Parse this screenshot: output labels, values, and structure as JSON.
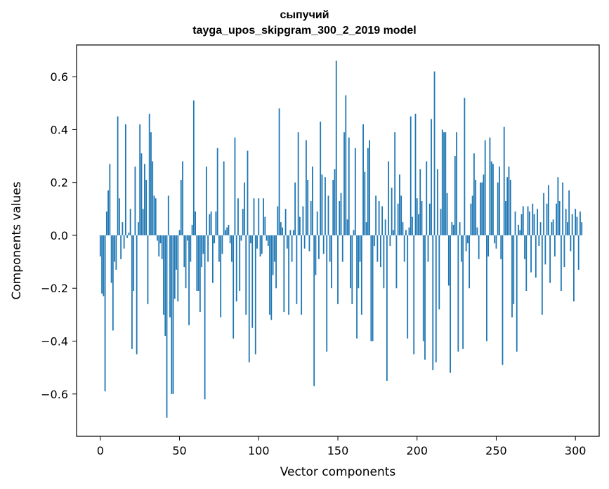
{
  "chart_data": {
    "type": "bar",
    "title_line1": "сыпучий",
    "title_line2": "tayga_upos_skipgram_300_2_2019 model",
    "xlabel": "Vector components",
    "ylabel": "Components values",
    "xlim": [
      -15,
      315
    ],
    "ylim": [
      -0.76,
      0.72
    ],
    "xticks": [
      0,
      50,
      100,
      150,
      200,
      250,
      300
    ],
    "xtick_labels": [
      "0",
      "50",
      "100",
      "150",
      "200",
      "250",
      "300"
    ],
    "yticks": [
      -0.6,
      -0.4,
      -0.2,
      0.0,
      0.2,
      0.4,
      0.6
    ],
    "ytick_labels": [
      "−0.6",
      "−0.4",
      "−0.2",
      "0.0",
      "0.2",
      "0.4",
      "0.6"
    ],
    "bar_color": "#1f77b4",
    "grid": false,
    "values": [
      -0.08,
      -0.22,
      -0.23,
      -0.59,
      0.09,
      0.17,
      0.27,
      -0.18,
      -0.36,
      -0.1,
      -0.13,
      0.45,
      0.14,
      -0.09,
      0.05,
      -0.05,
      0.42,
      -0.01,
      0.01,
      0.1,
      -0.43,
      -0.21,
      0.26,
      -0.45,
      0.05,
      0.42,
      0.31,
      0.1,
      0.27,
      0.21,
      -0.26,
      0.46,
      0.39,
      0.28,
      0.15,
      0.14,
      -0.02,
      -0.08,
      -0.03,
      -0.09,
      -0.3,
      -0.38,
      -0.69,
      0.15,
      -0.31,
      -0.6,
      -0.6,
      -0.24,
      -0.13,
      -0.25,
      0.02,
      0.21,
      0.28,
      -0.12,
      -0.2,
      -0.02,
      -0.34,
      -0.1,
      0.04,
      0.51,
      0.09,
      -0.21,
      -0.21,
      -0.29,
      -0.12,
      -0.07,
      -0.62,
      0.26,
      -0.1,
      0.08,
      0.09,
      -0.18,
      -0.03,
      0.09,
      0.33,
      -0.1,
      -0.31,
      -0.07,
      0.28,
      0.02,
      0.03,
      0.04,
      -0.03,
      -0.1,
      -0.39,
      0.37,
      -0.25,
      0.14,
      -0.21,
      -0.02,
      0.1,
      0.2,
      -0.3,
      0.32,
      -0.48,
      -0.03,
      -0.35,
      0.14,
      -0.45,
      -0.05,
      0.14,
      -0.08,
      -0.07,
      0.14,
      0.07,
      -0.02,
      -0.04,
      -0.3,
      -0.32,
      -0.15,
      -0.1,
      -0.2,
      0.11,
      0.48,
      0.05,
      0.03,
      -0.29,
      0.1,
      -0.05,
      -0.3,
      0.02,
      -0.1,
      0.02,
      0.2,
      -0.26,
      0.39,
      0.07,
      -0.3,
      0.11,
      -0.05,
      0.36,
      0.21,
      -0.06,
      0.13,
      0.26,
      -0.57,
      -0.15,
      0.09,
      -0.09,
      0.43,
      0.23,
      -0.07,
      0.22,
      -0.44,
      0.15,
      -0.1,
      -0.2,
      0.21,
      0.25,
      0.66,
      -0.26,
      0.13,
      0.16,
      -0.1,
      0.39,
      0.53,
      0.06,
      0.37,
      -0.2,
      -0.26,
      0.02,
      0.33,
      -0.39,
      -0.2,
      -0.1,
      -0.3,
      0.42,
      0.24,
      0.05,
      0.33,
      0.36,
      -0.4,
      -0.4,
      -0.04,
      0.15,
      -0.1,
      0.13,
      -0.12,
      0.11,
      -0.2,
      0.06,
      -0.55,
      0.28,
      -0.04,
      0.18,
      0.02,
      0.39,
      -0.2,
      0.12,
      0.23,
      0.15,
      0.05,
      -0.1,
      0.02,
      -0.39,
      0.03,
      0.45,
      0.07,
      -0.45,
      0.46,
      0.14,
      0.08,
      0.25,
      0.13,
      -0.4,
      -0.47,
      0.28,
      -0.1,
      0.12,
      0.44,
      -0.51,
      0.62,
      -0.48,
      0.25,
      -0.28,
      0.1,
      0.4,
      0.39,
      0.39,
      0.16,
      -0.19,
      -0.52,
      0.05,
      0.04,
      0.3,
      0.39,
      -0.44,
      0.05,
      -0.1,
      -0.43,
      0.52,
      -0.06,
      -0.03,
      -0.2,
      0.12,
      0.15,
      0.31,
      0.21,
      0.03,
      -0.09,
      0.2,
      0.2,
      0.23,
      0.36,
      -0.4,
      -0.08,
      0.37,
      0.28,
      0.27,
      -0.03,
      -0.05,
      0.2,
      0.26,
      -0.09,
      -0.49,
      0.41,
      0.13,
      0.22,
      0.26,
      0.21,
      -0.31,
      -0.26,
      0.09,
      -0.44,
      0.04,
      0.02,
      0.08,
      0.11,
      -0.09,
      -0.21,
      0.11,
      0.09,
      -0.14,
      0.12,
      0.08,
      -0.16,
      0.1,
      -0.04,
      0.05,
      -0.3,
      0.16,
      -0.11,
      0.12,
      0.19,
      -0.18,
      0.05,
      0.06,
      -0.08,
      0.12,
      0.22,
      0.13,
      -0.21,
      0.2,
      -0.12,
      0.1,
      0.05,
      0.17,
      -0.06,
      0.08,
      -0.25,
      0.1,
      0.07,
      -0.13,
      0.09,
      0.05
    ]
  }
}
